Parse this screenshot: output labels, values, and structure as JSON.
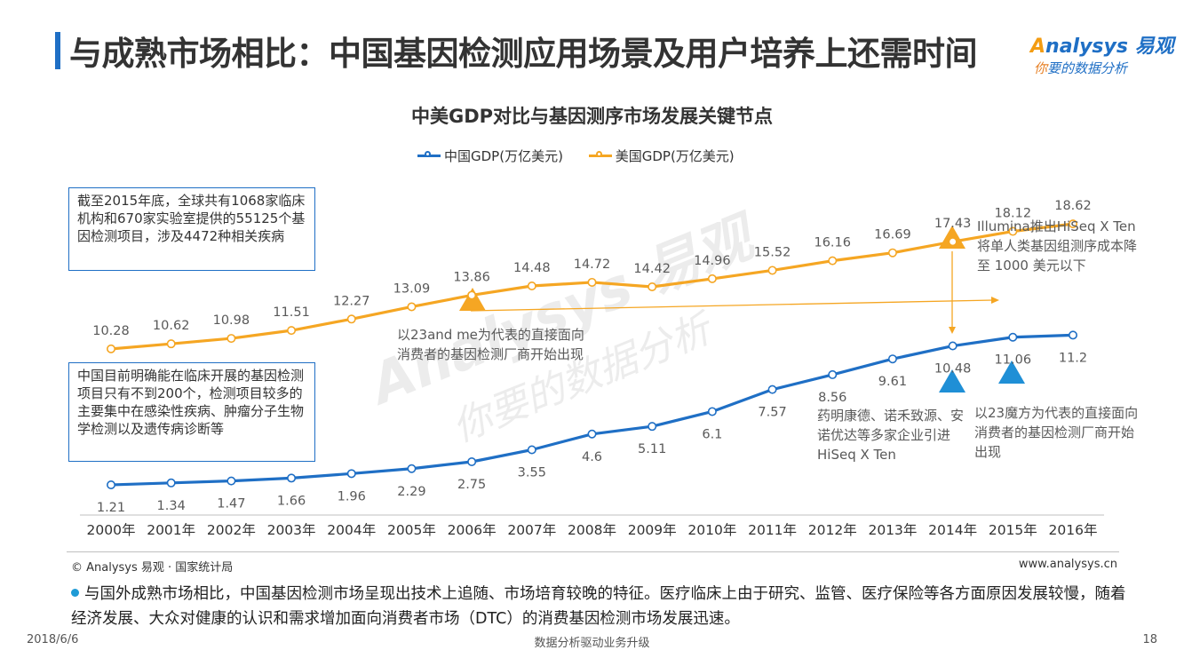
{
  "header": {
    "title": "与成熟市场相比：中国基因检测应用场景及用户培养上还需时间",
    "logo_text_a": "A",
    "logo_text_rest": "nalysys 易观",
    "logo_slogan_ni": "你",
    "logo_slogan_rest": "要的数据分析"
  },
  "chart_data": {
    "type": "line",
    "title": "中美GDP对比与基因测序市场发展关键节点",
    "categories": [
      "2000年",
      "2001年",
      "2002年",
      "2003年",
      "2004年",
      "2005年",
      "2006年",
      "2007年",
      "2008年",
      "2009年",
      "2010年",
      "2011年",
      "2012年",
      "2013年",
      "2014年",
      "2015年",
      "2016年"
    ],
    "series": [
      {
        "name": "中国GDP(万亿美元)",
        "color": "#1f6fc5",
        "values": [
          1.21,
          1.34,
          1.47,
          1.66,
          1.96,
          2.29,
          2.75,
          3.55,
          4.6,
          5.11,
          6.1,
          7.57,
          8.56,
          9.61,
          10.48,
          11.06,
          11.2
        ]
      },
      {
        "name": "美国GDP(万亿美元)",
        "color": "#f5a623",
        "values": [
          10.28,
          10.62,
          10.98,
          11.51,
          12.27,
          13.09,
          13.86,
          14.48,
          14.72,
          14.42,
          14.96,
          15.52,
          16.16,
          16.69,
          17.43,
          18.12,
          18.62
        ]
      }
    ],
    "grid": false,
    "legend_position": "top"
  },
  "notes": {
    "global_box": "截至2015年底，全球共有1068家临床机构和670家实验室提供的55125个基因检测项目，涉及4472种相关疾病",
    "china_box": "中国目前明确能在临床开展的基因检测项目只有不到200个，检测项目较多的主要集中在感染性疾病、肿瘤分子生物学检测以及遗传病诊断等",
    "annot_23andme": "以23and  me为代表的直接面向消费者的基因检测厂商开始出现",
    "annot_illumina": "Illumina推出HiSeq  X Ten  将单人类基因组测序成本降至  1000  美元以下",
    "annot_china_companies": "药明康德、诺禾致源、安诺优达等多家企业引进HiSeq X Ten",
    "annot_23mofang": "以23魔方为代表的直接面向消费者的基因检测厂商开始出现"
  },
  "footer": {
    "source": "© Analysys 易观 · 国家统计局",
    "website": "www.analysys.cn",
    "summary": "与国外成熟市场相比，中国基因检测市场呈现出技术上追随、市场培育较晚的特征。医疗临床上由于研究、监管、医疗保险等各方面原因发展较慢，随着经济发展、大众对健康的认识和需求增加面向消费者市场（DTC）的消费基因检测市场发展迅速。",
    "date": "2018/6/6",
    "center": "数据分析驱动业务升级",
    "page": "18"
  }
}
